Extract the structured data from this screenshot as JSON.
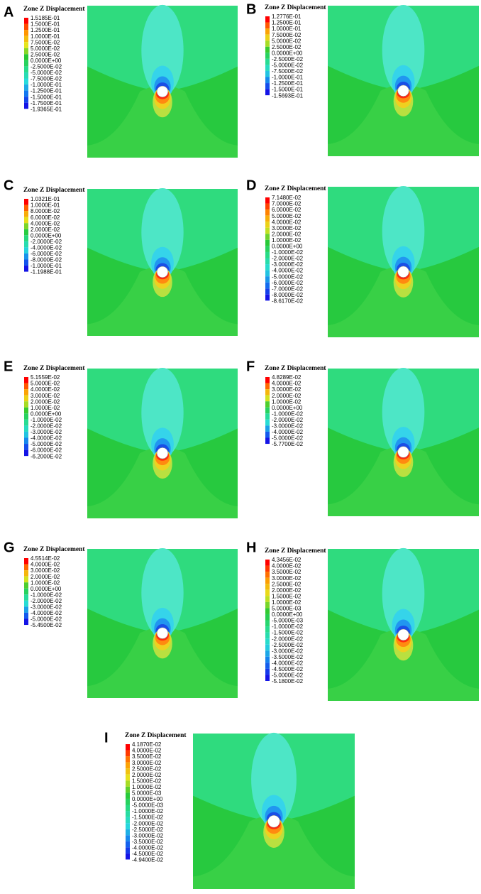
{
  "panels": [
    {
      "label": "A",
      "legend_title": "Zone Z Displacement",
      "legend_values": [
        "1.5185E-01",
        "1.5000E-01",
        "1.2500E-01",
        "1.0000E-01",
        "7.5000E-02",
        "5.0000E-02",
        "2.5000E-02",
        "0.0000E+00",
        "-2.5000E-02",
        "-5.0000E-02",
        "-7.5000E-02",
        "-1.0000E-01",
        "-1.2500E-01",
        "-1.5000E-01",
        "-1.7500E-01",
        "-1.9365E-01"
      ]
    },
    {
      "label": "B",
      "legend_title": "Zone Z Displacement",
      "legend_values": [
        "1.2776E-01",
        "1.2500E-01",
        "1.0000E-01",
        "7.5000E-02",
        "5.0000E-02",
        "2.5000E-02",
        "0.0000E+00",
        "-2.5000E-02",
        "-5.0000E-02",
        "-7.5000E-02",
        "-1.0000E-01",
        "-1.2500E-01",
        "-1.5000E-01",
        "-1.5693E-01"
      ]
    },
    {
      "label": "C",
      "legend_title": "Zone Z Displacement",
      "legend_values": [
        "1.0321E-01",
        "1.0000E-01",
        "8.0000E-02",
        "6.0000E-02",
        "4.0000E-02",
        "2.0000E-02",
        "0.0000E+00",
        "-2.0000E-02",
        "-4.0000E-02",
        "-6.0000E-02",
        "-8.0000E-02",
        "-1.0000E-01",
        "-1.1988E-01"
      ]
    },
    {
      "label": "D",
      "legend_title": "Zone Z Displacement",
      "legend_values": [
        "7.1480E-02",
        "7.0000E-02",
        "6.0000E-02",
        "5.0000E-02",
        "4.0000E-02",
        "3.0000E-02",
        "2.0000E-02",
        "1.0000E-02",
        "0.0000E+00",
        "-1.0000E-02",
        "-2.0000E-02",
        "-3.0000E-02",
        "-4.0000E-02",
        "-5.0000E-02",
        "-6.0000E-02",
        "-7.0000E-02",
        "-8.0000E-02",
        "-8.6170E-02"
      ]
    },
    {
      "label": "E",
      "legend_title": "Zone Z Displacement",
      "legend_values": [
        "5.1559E-02",
        "5.0000E-02",
        "4.0000E-02",
        "3.0000E-02",
        "2.0000E-02",
        "1.0000E-02",
        "0.0000E+00",
        "-1.0000E-02",
        "-2.0000E-02",
        "-3.0000E-02",
        "-4.0000E-02",
        "-5.0000E-02",
        "-6.0000E-02",
        "-6.2000E-02"
      ]
    },
    {
      "label": "F",
      "legend_title": "Zone Z Displacement",
      "legend_values": [
        "4.8289E-02",
        "4.0000E-02",
        "3.0000E-02",
        "2.0000E-02",
        "1.0000E-02",
        "0.0000E+00",
        "-1.0000E-02",
        "-2.0000E-02",
        "-3.0000E-02",
        "-4.0000E-02",
        "-5.0000E-02",
        "-5.7700E-02"
      ]
    },
    {
      "label": "G",
      "legend_title": "Zone Z Displacement",
      "legend_values": [
        "4.5514E-02",
        "4.0000E-02",
        "3.0000E-02",
        "2.0000E-02",
        "1.0000E-02",
        "0.0000E+00",
        "-1.0000E-02",
        "-2.0000E-02",
        "-3.0000E-02",
        "-4.0000E-02",
        "-5.0000E-02",
        "-5.4500E-02"
      ]
    },
    {
      "label": "H",
      "legend_title": "Zone Z Displacement",
      "legend_values": [
        "4.3456E-02",
        "4.0000E-02",
        "3.5000E-02",
        "3.0000E-02",
        "2.5000E-02",
        "2.0000E-02",
        "1.5000E-02",
        "1.0000E-02",
        "5.0000E-03",
        "0.0000E+00",
        "-5.0000E-03",
        "-1.0000E-02",
        "-1.5000E-02",
        "-2.0000E-02",
        "-2.5000E-02",
        "-3.0000E-02",
        "-3.5000E-02",
        "-4.0000E-02",
        "-4.5000E-02",
        "-5.0000E-02",
        "-5.1800E-02"
      ]
    },
    {
      "label": "I",
      "legend_title": "Zone Z Displacement",
      "legend_values": [
        "4.1870E-02",
        "4.0000E-02",
        "3.5000E-02",
        "3.0000E-02",
        "2.5000E-02",
        "2.0000E-02",
        "1.5000E-02",
        "1.0000E-02",
        "5.0000E-03",
        "0.0000E+00",
        "-5.0000E-03",
        "-1.0000E-02",
        "-1.5000E-02",
        "-2.0000E-02",
        "-2.5000E-02",
        "-3.0000E-02",
        "-3.5000E-02",
        "-4.0000E-02",
        "-4.5000E-02",
        "-4.9400E-02"
      ]
    }
  ]
}
